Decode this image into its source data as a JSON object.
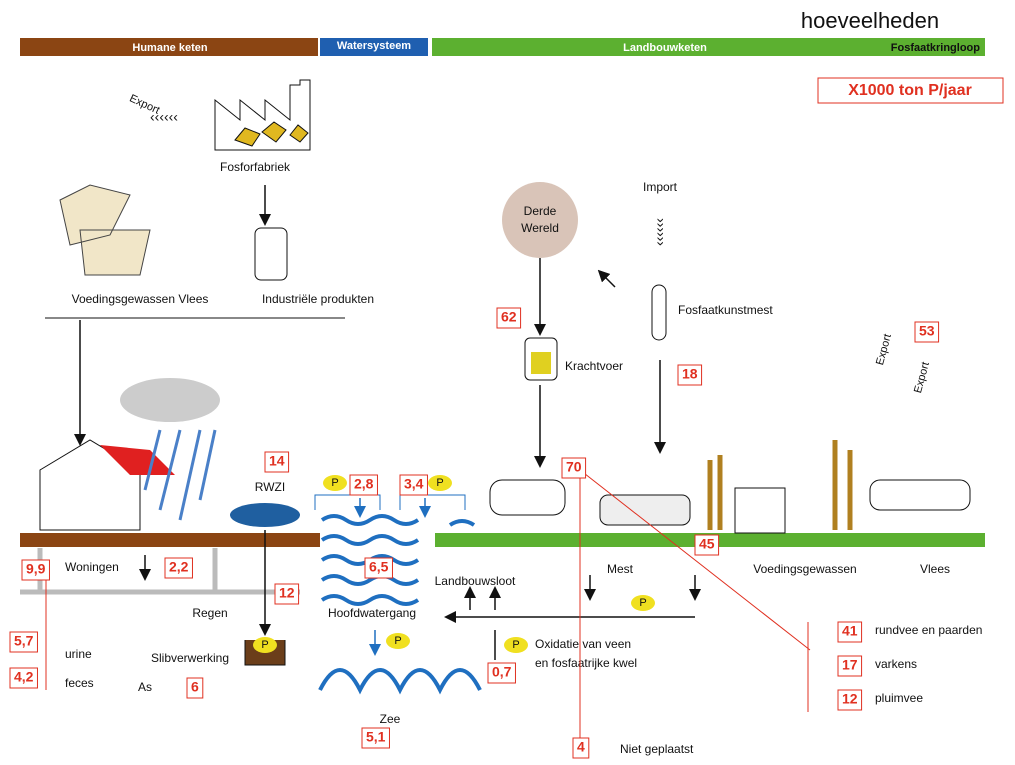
{
  "header": {
    "title": "hoeveelheden",
    "unit": "X1000 ton P/jaar"
  },
  "bands": [
    "Humane keten",
    "Watersysteem",
    "Landbouwketen",
    "Fosfaatkringloop"
  ],
  "labels": {
    "fosforfabriek": "Fosforfabriek",
    "voedingsgewassen_vlees": "Voedingsgewassen Vlees",
    "industriele_produkten": "Industriële produkten",
    "derde": "Derde",
    "wereld": "Wereld",
    "import": "Import",
    "fosfaatkunstmest": "Fosfaatkunstmest",
    "krachtvoer": "Krachtvoer",
    "rwzi": "RWZI",
    "woningen": "Woningen",
    "regen": "Regen",
    "hoofdwatergang": "Hoofdwatergang",
    "landbouwsloot": "Landbouwsloot",
    "mest": "Mest",
    "voedingsgewassen": "Voedingsgewassen",
    "vlees": "Vlees",
    "urine": "urine",
    "feces": "feces",
    "slibverwerking": "Slibverwerking",
    "as": "As",
    "zee": "Zee",
    "oxidatie_1": "Oxidatie van veen",
    "oxidatie_2": "en fosfaatrijke kwel",
    "rundvee": "rundvee en paarden",
    "varkens": "varkens",
    "pluimvee": "pluimvee",
    "niet_geplaatst": "Niet geplaatst"
  },
  "exports": [
    "Export",
    "Export",
    "Export"
  ],
  "p_markers": [
    "P",
    "P",
    "P",
    "P",
    "P",
    "P"
  ],
  "quantities": [
    "62",
    "18",
    "53",
    "14",
    "2,8",
    "3,4",
    "70",
    "45",
    "9,9",
    "2,2",
    "12",
    "6,5",
    "5,7",
    "4,2",
    "6",
    "0,7",
    "5,1",
    "41",
    "17",
    "12",
    "4"
  ]
}
